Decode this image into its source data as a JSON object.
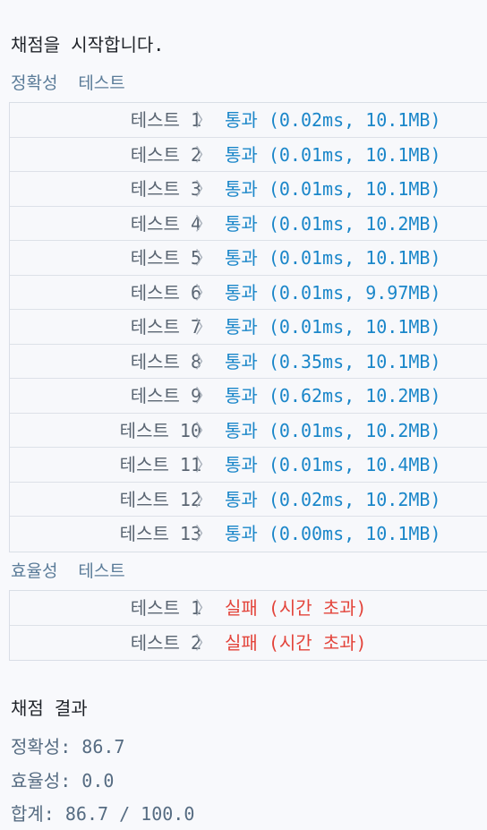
{
  "header": {
    "start_text": "채점을 시작합니다."
  },
  "accuracy": {
    "label": "정확성  테스트",
    "rows": [
      {
        "name": "테스트 1",
        "result": "통과 (0.02ms, 10.1MB)",
        "status": "pass"
      },
      {
        "name": "테스트 2",
        "result": "통과 (0.01ms, 10.1MB)",
        "status": "pass"
      },
      {
        "name": "테스트 3",
        "result": "통과 (0.01ms, 10.1MB)",
        "status": "pass"
      },
      {
        "name": "테스트 4",
        "result": "통과 (0.01ms, 10.2MB)",
        "status": "pass"
      },
      {
        "name": "테스트 5",
        "result": "통과 (0.01ms, 10.1MB)",
        "status": "pass"
      },
      {
        "name": "테스트 6",
        "result": "통과 (0.01ms, 9.97MB)",
        "status": "pass"
      },
      {
        "name": "테스트 7",
        "result": "통과 (0.01ms, 10.1MB)",
        "status": "pass"
      },
      {
        "name": "테스트 8",
        "result": "통과 (0.35ms, 10.1MB)",
        "status": "pass"
      },
      {
        "name": "테스트 9",
        "result": "통과 (0.62ms, 10.2MB)",
        "status": "pass"
      },
      {
        "name": "테스트 10",
        "result": "통과 (0.01ms, 10.2MB)",
        "status": "pass"
      },
      {
        "name": "테스트 11",
        "result": "통과 (0.01ms, 10.4MB)",
        "status": "pass"
      },
      {
        "name": "테스트 12",
        "result": "통과 (0.02ms, 10.2MB)",
        "status": "pass"
      },
      {
        "name": "테스트 13",
        "result": "통과 (0.00ms, 10.1MB)",
        "status": "pass"
      }
    ]
  },
  "efficiency": {
    "label": "효율성  테스트",
    "rows": [
      {
        "name": "테스트 1",
        "result": "실패 (시간 초과)",
        "status": "fail"
      },
      {
        "name": "테스트 2",
        "result": "실패 (시간 초과)",
        "status": "fail"
      }
    ]
  },
  "summary": {
    "title": "채점 결과",
    "accuracy": "정확성: 86.7",
    "efficiency": "효율성: 0.0",
    "total": "합계: 86.7 / 100.0"
  },
  "icons": {
    "row_chevron": "chevron-right-icon"
  },
  "colors": {
    "pass": "#1a86c9",
    "fail": "#e3443b",
    "label": "#5b7c99",
    "background": "#f8f9fc"
  }
}
